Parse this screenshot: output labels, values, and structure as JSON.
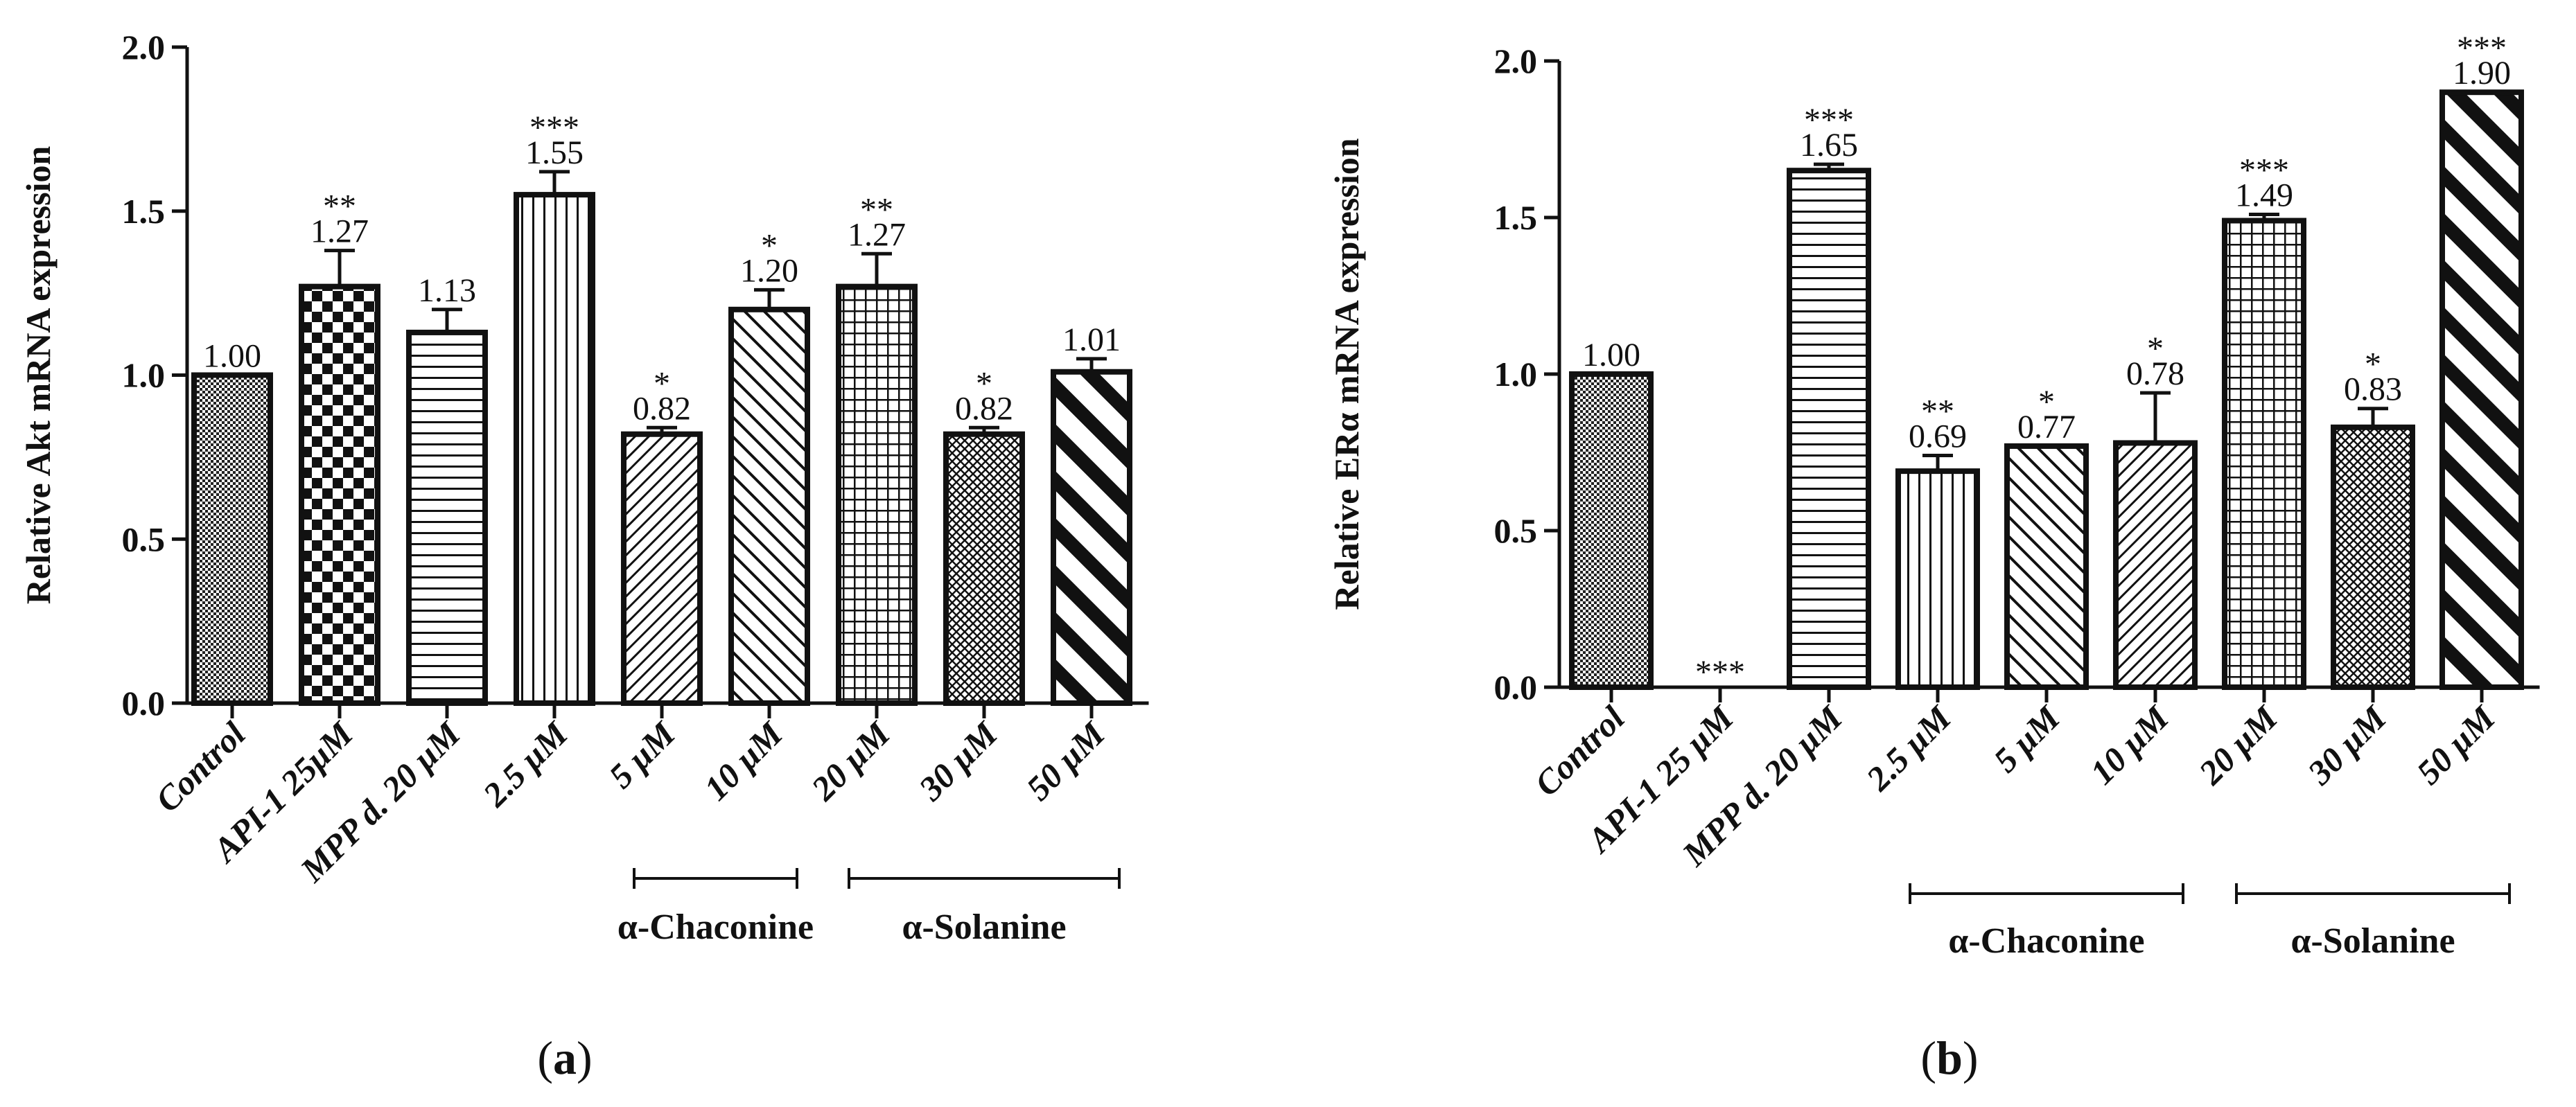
{
  "chart_data": [
    {
      "type": "bar",
      "panel_label_parts": [
        "(",
        "a",
        ")"
      ],
      "ylabel": "Relative Akt mRNA expression",
      "ylim": [
        0,
        2.0
      ],
      "yticks": [
        "0.0",
        "0.5",
        "1.0",
        "1.5",
        "2.0"
      ],
      "categories": [
        "Control",
        "API-1 25μM",
        "MPP d. 20 μM",
        "2.5 μM",
        "5 μM",
        "10 μM",
        "20 μM",
        "30 μM",
        "50 μM"
      ],
      "values": [
        1.0,
        1.27,
        1.13,
        1.55,
        0.82,
        1.2,
        1.27,
        0.82,
        1.01
      ],
      "errors": [
        0.0,
        0.11,
        0.07,
        0.07,
        0.02,
        0.06,
        0.1,
        0.02,
        0.04
      ],
      "labels": [
        "1.00",
        "1.27",
        "1.13",
        "1.55",
        "0.82",
        "1.20",
        "1.27",
        "0.82",
        "1.01"
      ],
      "significance": [
        "",
        "**",
        "",
        "***",
        "*",
        "*",
        "**",
        "*",
        ""
      ],
      "patterns": [
        "fine",
        "checker",
        "hlines",
        "vlines",
        "diag-fine",
        "diag-med",
        "grid",
        "dense",
        "diag-bold"
      ],
      "groups": [
        {
          "label": "α-Chaconine",
          "from": 4,
          "to": 5
        },
        {
          "label": "α-Solanine",
          "from": 6,
          "to": 8
        }
      ]
    },
    {
      "type": "bar",
      "panel_label_parts": [
        "(",
        "b",
        ")"
      ],
      "ylabel": "Relative ERα mRNA expression",
      "ylim": [
        0,
        2.0
      ],
      "yticks": [
        "0.0",
        "0.5",
        "1.0",
        "1.5",
        "2.0"
      ],
      "categories": [
        "Control",
        "API-1 25 μM",
        "MPP d. 20 μM",
        "2.5 μM",
        "5 μM",
        "10 μM",
        "20 μM",
        "30 μM",
        "50 μM"
      ],
      "values": [
        1.0,
        0.0,
        1.65,
        0.69,
        0.77,
        0.78,
        1.49,
        0.83,
        1.9
      ],
      "errors": [
        0.0,
        0.0,
        0.02,
        0.05,
        0.0,
        0.16,
        0.02,
        0.06,
        0.0
      ],
      "labels": [
        "1.00",
        "",
        "1.65",
        "0.69",
        "0.77",
        "0.78",
        "1.49",
        "0.83",
        "1.90"
      ],
      "significance": [
        "",
        "***",
        "***",
        "**",
        "*",
        "*",
        "***",
        "*",
        "***"
      ],
      "patterns": [
        "fine",
        "none",
        "hlines",
        "vlines",
        "diag-med",
        "diag-fine",
        "grid",
        "dense",
        "diag-bold"
      ],
      "groups": [
        {
          "label": "α-Chaconine",
          "from": 3,
          "to": 5
        },
        {
          "label": "α-Solanine",
          "from": 6,
          "to": 8
        }
      ]
    }
  ]
}
